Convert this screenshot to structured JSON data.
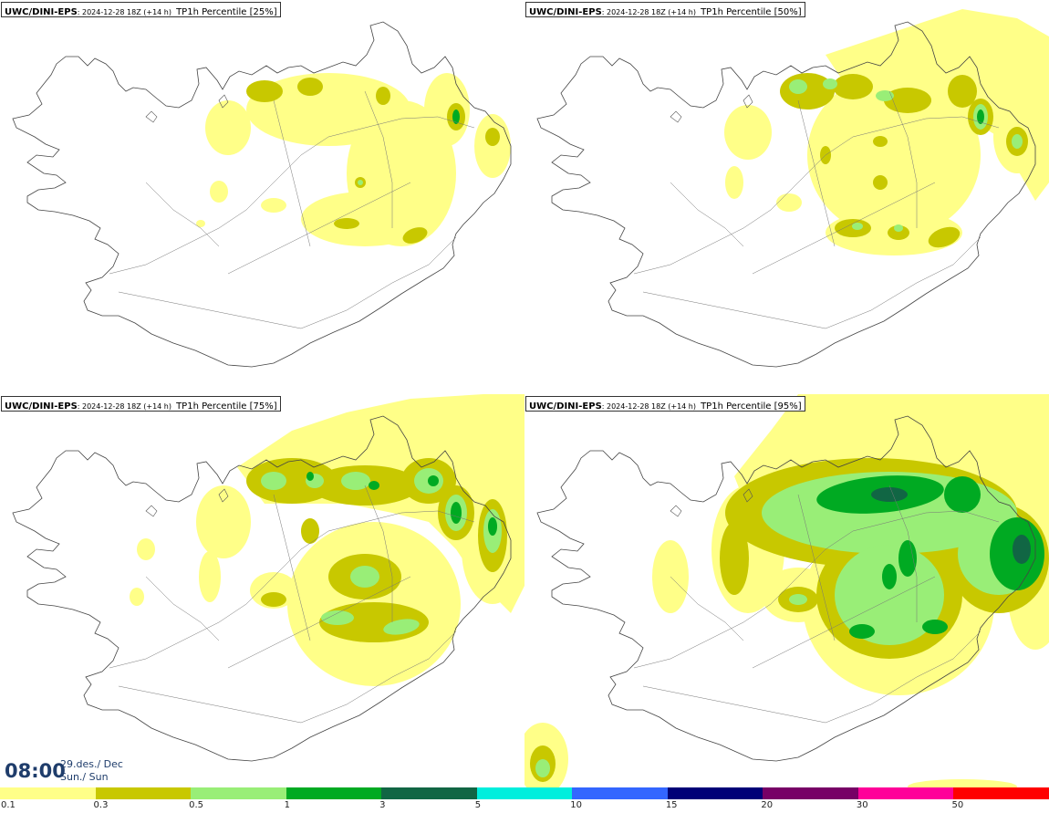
{
  "panels": [
    {
      "source": "UWC/DINI-EPS",
      "run": ": 2024-12-28 18Z (+14 h)",
      "field": "TP1h Percentile [25%]"
    },
    {
      "source": "UWC/DINI-EPS",
      "run": ": 2024-12-28 18Z (+14 h)",
      "field": "TP1h Percentile [50%]"
    },
    {
      "source": "UWC/DINI-EPS",
      "run": ": 2024-12-28 18Z (+14 h)",
      "field": "TP1h Percentile [75%]"
    },
    {
      "source": "UWC/DINI-EPS",
      "run": ": 2024-12-28 18Z (+14 h)",
      "field": "TP1h Percentile [95%]"
    }
  ],
  "time": {
    "clock": "08:00",
    "date_line": "29.des./ Dec",
    "day_line": "Sun./ Sun"
  },
  "legend": {
    "colors": [
      "#ffff88",
      "#c8c800",
      "#99ee77",
      "#00aa22",
      "#116644",
      "#00eedd",
      "#3366ff",
      "#000077",
      "#770066",
      "#ff0099",
      "#ff0000"
    ],
    "labels": [
      "0.1",
      "0.3",
      "0.5",
      "1",
      "3",
      "5",
      "10",
      "15",
      "20",
      "30",
      "50"
    ]
  }
}
